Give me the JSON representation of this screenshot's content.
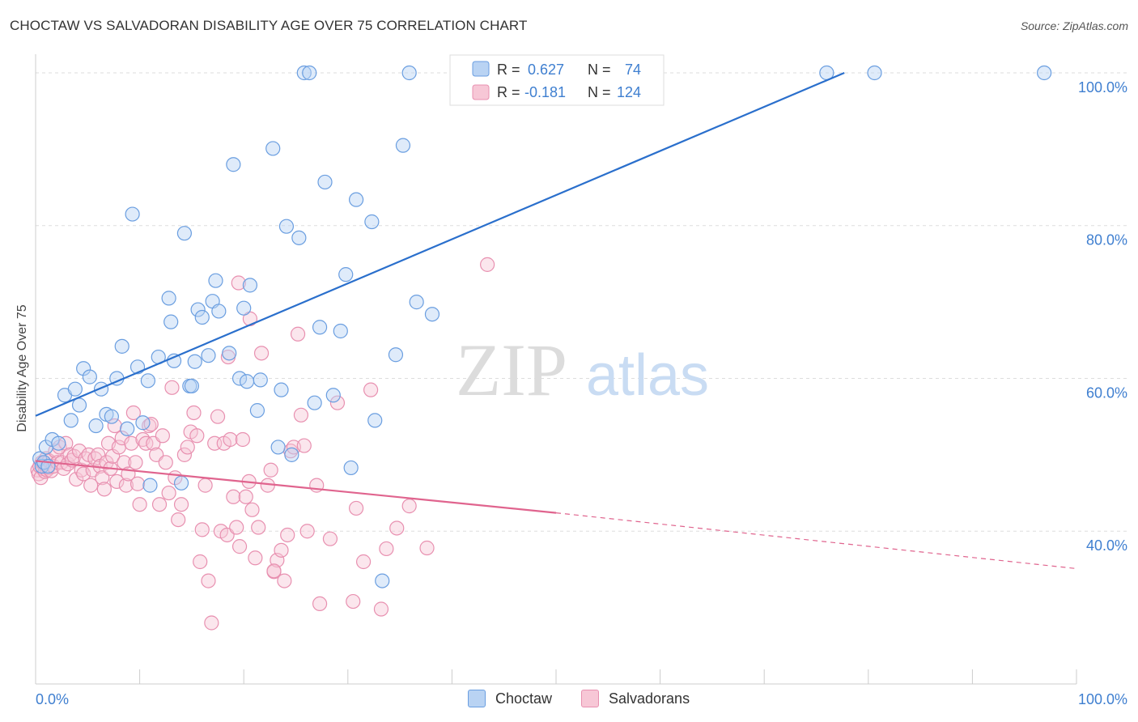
{
  "header": {
    "title": "CHOCTAW VS SALVADORAN DISABILITY AGE OVER 75 CORRELATION CHART",
    "source": "Source: ZipAtlas.com"
  },
  "watermark": {
    "zip": "ZIP",
    "atlas": "atlas"
  },
  "colors": {
    "choctaw": "#6a9ee0",
    "choctaw_fill": "#b9d3f3",
    "choctaw_line": "#2a6fcc",
    "salvadoran": "#e890b0",
    "salvadoran_fill": "#f7c7d6",
    "salvadoran_line": "#e0648e",
    "axis_text": "#3f7fd0"
  },
  "legend": {
    "rows": [
      {
        "r_label": "R = ",
        "r_value": "0.627",
        "n_label": "N = ",
        "n_value": "74"
      },
      {
        "r_label": "R = ",
        "r_value": "-0.181",
        "n_label": "N = ",
        "n_value": "124"
      }
    ]
  },
  "bottom_legend": {
    "choctaw": "Choctaw",
    "salvadorans": "Salvadorans"
  },
  "chart_data": {
    "type": "scatter",
    "title": "CHOCTAW VS SALVADORAN DISABILITY AGE OVER 75 CORRELATION CHART",
    "xlabel": "",
    "ylabel": "Disability Age Over 75",
    "xlim": [
      0,
      100
    ],
    "ylim": [
      20,
      101.8
    ],
    "x_tick_labels": [
      "0.0%",
      "100.0%"
    ],
    "y_ticks": [
      40,
      60,
      80,
      100
    ],
    "y_tick_labels": [
      "40.0%",
      "60.0%",
      "80.0%",
      "100.0%"
    ],
    "grid": true,
    "legend_position": "top-center",
    "series": [
      {
        "name": "Choctaw",
        "r": 0.627,
        "n": 74,
        "trend": {
          "x0": 0,
          "y0": 55.1,
          "x1": 77.7,
          "y1": 100.0,
          "dashed_to": null
        },
        "points": [
          [
            0.4,
            49.5
          ],
          [
            0.6,
            48.5
          ],
          [
            0.8,
            49
          ],
          [
            1,
            51
          ],
          [
            1.2,
            48.5
          ],
          [
            1.6,
            52
          ],
          [
            2.2,
            51.5
          ],
          [
            2.8,
            57.8
          ],
          [
            3.4,
            54.5
          ],
          [
            3.8,
            58.6
          ],
          [
            4.2,
            56.5
          ],
          [
            4.6,
            61.3
          ],
          [
            5.2,
            60.2
          ],
          [
            5.8,
            53.8
          ],
          [
            6.3,
            58.6
          ],
          [
            6.8,
            55.3
          ],
          [
            7.3,
            55
          ],
          [
            7.8,
            60
          ],
          [
            8.3,
            64.2
          ],
          [
            8.8,
            53.4
          ],
          [
            9.3,
            81.5
          ],
          [
            9.8,
            61.5
          ],
          [
            10.3,
            54.2
          ],
          [
            10.8,
            59.7
          ],
          [
            11,
            46
          ],
          [
            11.8,
            62.8
          ],
          [
            12.8,
            70.5
          ],
          [
            13,
            67.4
          ],
          [
            13.3,
            62.3
          ],
          [
            14,
            46.3
          ],
          [
            14.3,
            79
          ],
          [
            14.8,
            59
          ],
          [
            15,
            59
          ],
          [
            15.3,
            62.2
          ],
          [
            15.6,
            69
          ],
          [
            16,
            68
          ],
          [
            16.6,
            63
          ],
          [
            17,
            70.1
          ],
          [
            17.3,
            72.8
          ],
          [
            17.6,
            68.8
          ],
          [
            18.6,
            63.3
          ],
          [
            19,
            88
          ],
          [
            19.6,
            60
          ],
          [
            20,
            69.2
          ],
          [
            20.3,
            59.6
          ],
          [
            20.6,
            72.2
          ],
          [
            21.3,
            55.8
          ],
          [
            21.6,
            59.8
          ],
          [
            22.8,
            90.1
          ],
          [
            23.3,
            51
          ],
          [
            23.6,
            58.5
          ],
          [
            24.1,
            79.9
          ],
          [
            24.6,
            50
          ],
          [
            25.3,
            78.4
          ],
          [
            25.8,
            100
          ],
          [
            26.3,
            100
          ],
          [
            26.8,
            56.8
          ],
          [
            27.3,
            66.7
          ],
          [
            27.8,
            85.7
          ],
          [
            28.6,
            57.8
          ],
          [
            29.3,
            66.2
          ],
          [
            29.8,
            73.6
          ],
          [
            30.3,
            48.3
          ],
          [
            30.8,
            83.4
          ],
          [
            32.3,
            80.5
          ],
          [
            32.6,
            54.5
          ],
          [
            33.3,
            33.5
          ],
          [
            34.6,
            63.1
          ],
          [
            35.3,
            90.5
          ],
          [
            35.9,
            100
          ],
          [
            36.6,
            70
          ],
          [
            38.1,
            68.4
          ],
          [
            76,
            100
          ],
          [
            80.6,
            100
          ],
          [
            96.9,
            100
          ]
        ]
      },
      {
        "name": "Salvadorans",
        "r": -0.181,
        "n": 124,
        "trend": {
          "x0": 0,
          "y0": 49.2,
          "x1": 50,
          "y1": 42.4,
          "dashed_to": {
            "x": 100,
            "y": 35.1
          }
        },
        "points": [
          [
            0.2,
            48
          ],
          [
            0.3,
            47.5
          ],
          [
            0.4,
            48.5
          ],
          [
            0.5,
            47
          ],
          [
            0.6,
            49
          ],
          [
            0.7,
            48.2
          ],
          [
            0.8,
            48.8
          ],
          [
            0.9,
            47.8
          ],
          [
            1,
            49.5
          ],
          [
            1.1,
            48
          ],
          [
            1.2,
            48.3
          ],
          [
            1.3,
            49.2
          ],
          [
            1.5,
            47.9
          ],
          [
            1.7,
            48.5
          ],
          [
            1.9,
            50.5
          ],
          [
            2.1,
            49
          ],
          [
            2.3,
            51
          ],
          [
            2.5,
            49
          ],
          [
            2.7,
            48.2
          ],
          [
            2.9,
            51.5
          ],
          [
            3.1,
            48.8
          ],
          [
            3.3,
            50
          ],
          [
            3.5,
            49.3
          ],
          [
            3.7,
            49.8
          ],
          [
            3.9,
            46.8
          ],
          [
            4.2,
            50.5
          ],
          [
            4.4,
            48
          ],
          [
            4.6,
            47.5
          ],
          [
            4.8,
            49.5
          ],
          [
            5.1,
            50
          ],
          [
            5.3,
            46
          ],
          [
            5.5,
            48
          ],
          [
            5.7,
            49.5
          ],
          [
            6,
            50
          ],
          [
            6.2,
            48.5
          ],
          [
            6.4,
            47
          ],
          [
            6.6,
            45.5
          ],
          [
            6.8,
            49
          ],
          [
            7,
            51.5
          ],
          [
            7.2,
            48.2
          ],
          [
            7.4,
            49.8
          ],
          [
            7.6,
            53.8
          ],
          [
            7.8,
            46.5
          ],
          [
            8,
            51
          ],
          [
            8.3,
            52.2
          ],
          [
            8.5,
            49
          ],
          [
            8.7,
            46
          ],
          [
            8.9,
            47.5
          ],
          [
            9.2,
            51.5
          ],
          [
            9.4,
            55.5
          ],
          [
            9.6,
            49
          ],
          [
            9.8,
            46.2
          ],
          [
            10,
            43.5
          ],
          [
            10.3,
            52
          ],
          [
            10.6,
            51.5
          ],
          [
            10.9,
            53.8
          ],
          [
            11.1,
            54
          ],
          [
            11.3,
            51.5
          ],
          [
            11.6,
            50
          ],
          [
            11.9,
            43.5
          ],
          [
            12.2,
            52.5
          ],
          [
            12.5,
            49
          ],
          [
            12.8,
            45
          ],
          [
            13.1,
            58.8
          ],
          [
            13.4,
            47
          ],
          [
            13.7,
            41.5
          ],
          [
            14,
            43.5
          ],
          [
            14.3,
            50
          ],
          [
            14.6,
            51
          ],
          [
            14.9,
            53
          ],
          [
            15.2,
            55.5
          ],
          [
            15.5,
            52.5
          ],
          [
            15.8,
            36
          ],
          [
            16,
            40.2
          ],
          [
            16.3,
            46
          ],
          [
            16.6,
            33.5
          ],
          [
            16.9,
            28
          ],
          [
            17.2,
            51.5
          ],
          [
            17.5,
            55
          ],
          [
            17.8,
            40
          ],
          [
            18.1,
            51.5
          ],
          [
            18.4,
            39.5
          ],
          [
            18.7,
            52
          ],
          [
            19,
            44.5
          ],
          [
            19.3,
            40.5
          ],
          [
            19.6,
            38
          ],
          [
            19.9,
            52
          ],
          [
            20.2,
            44.5
          ],
          [
            20.5,
            46.5
          ],
          [
            20.8,
            42.8
          ],
          [
            21.1,
            36.5
          ],
          [
            21.4,
            40.5
          ],
          [
            21.7,
            63.3
          ],
          [
            22.3,
            46
          ],
          [
            22.6,
            48
          ],
          [
            22.9,
            34.7
          ],
          [
            23.2,
            36.2
          ],
          [
            23.6,
            37.5
          ],
          [
            23.9,
            33.5
          ],
          [
            24.2,
            39.5
          ],
          [
            24.5,
            50.5
          ],
          [
            24.8,
            51
          ],
          [
            25.2,
            65.8
          ],
          [
            25.5,
            55.2
          ],
          [
            25.8,
            51.2
          ],
          [
            26.1,
            40
          ],
          [
            27,
            46
          ],
          [
            27.3,
            30.5
          ],
          [
            28.3,
            39
          ],
          [
            29,
            56.8
          ],
          [
            30.5,
            30.8
          ],
          [
            30.8,
            43
          ],
          [
            31.5,
            36
          ],
          [
            32.2,
            58.5
          ],
          [
            33.7,
            37.7
          ],
          [
            33.2,
            29.8
          ],
          [
            34.7,
            40.4
          ],
          [
            35.9,
            43.3
          ],
          [
            37.6,
            37.8
          ],
          [
            43.4,
            74.9
          ],
          [
            19.5,
            72.5
          ],
          [
            20.6,
            67.8
          ],
          [
            18.5,
            62.8
          ],
          [
            22.9,
            34.8
          ]
        ]
      }
    ]
  }
}
